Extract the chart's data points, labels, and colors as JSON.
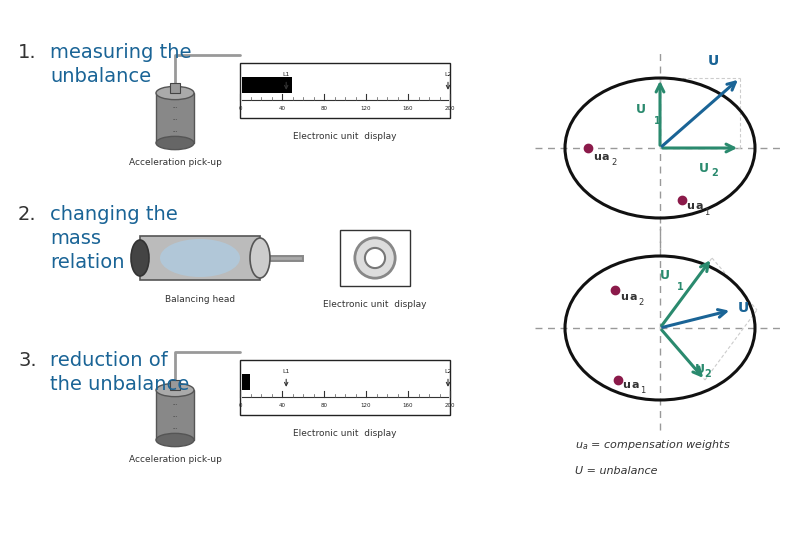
{
  "bg_color": "#ffffff",
  "blue_color": "#1a6496",
  "arrow_blue": "#1a6496",
  "arrow_green": "#2a8a6e",
  "dot_color": "#8B1A4A",
  "dash_color": "#999999",
  "text_dark": "#333333",
  "caption_pickup": "Acceleration pick-up",
  "caption_display": "Electronic unit  display",
  "caption_head": "Balancing head",
  "ua_legend": "u_a = compensation weights",
  "U_legend": "U = unbalance"
}
